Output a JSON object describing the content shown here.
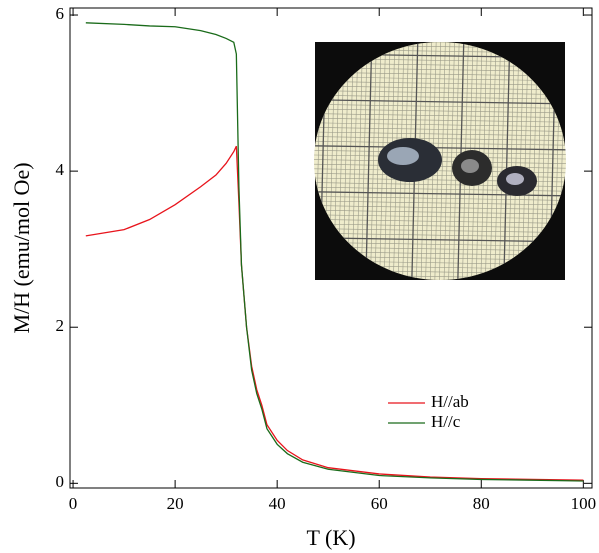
{
  "chart_data": {
    "type": "line",
    "x_label": "T (K)",
    "y_label": "M/H (emu/mol Oe)",
    "x": [
      2.5,
      10,
      15,
      20,
      25,
      28,
      30,
      31.5,
      32,
      32.5,
      33,
      34,
      35,
      36,
      37,
      38,
      40,
      42,
      45,
      50,
      60,
      70,
      80,
      90,
      100
    ],
    "series": [
      {
        "name": "H//ab",
        "color": "#e8141c",
        "values": [
          3.17,
          3.25,
          3.38,
          3.57,
          3.8,
          3.95,
          4.1,
          4.25,
          4.32,
          3.6,
          2.8,
          2.0,
          1.5,
          1.2,
          1.0,
          0.75,
          0.55,
          0.42,
          0.3,
          0.2,
          0.12,
          0.08,
          0.06,
          0.05,
          0.04
        ]
      },
      {
        "name": "H//c",
        "color": "#1a6b1a",
        "values": [
          5.9,
          5.88,
          5.86,
          5.85,
          5.8,
          5.75,
          5.7,
          5.65,
          5.5,
          3.8,
          2.8,
          2.0,
          1.45,
          1.15,
          0.95,
          0.7,
          0.5,
          0.38,
          0.27,
          0.18,
          0.1,
          0.07,
          0.05,
          0.04,
          0.03
        ]
      }
    ],
    "xlim": [
      -0.6,
      101.7
    ],
    "ylim": [
      -0.06,
      6.09
    ],
    "xticks": [
      0,
      20,
      40,
      60,
      80,
      100
    ],
    "yticks": [
      0,
      2,
      4,
      6
    ],
    "legend": "lower-right"
  }
}
